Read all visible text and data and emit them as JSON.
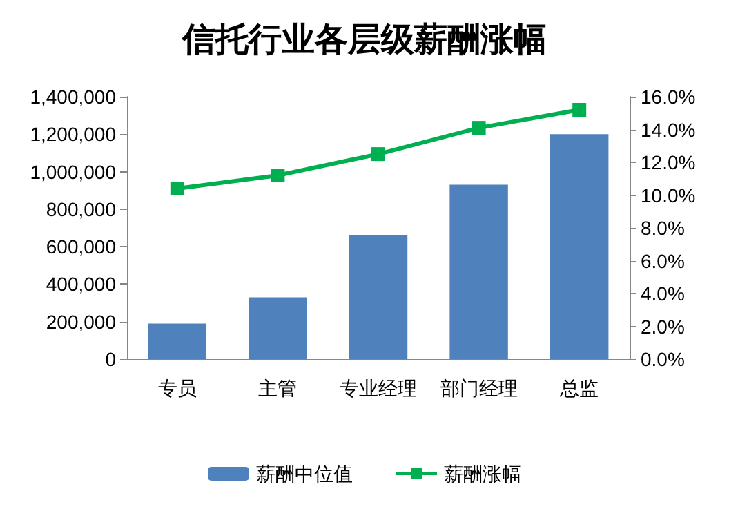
{
  "chart_data": {
    "type": "bar",
    "title": "信托行业各层级薪酬涨幅",
    "categories": [
      "专员",
      "主管",
      "专业经理",
      "部门经理",
      "总监"
    ],
    "series": [
      {
        "name": "薪酬中位值",
        "color": "#4f81bd",
        "values": [
          190000,
          330000,
          660000,
          930000,
          1200000
        ]
      },
      {
        "name": "薪酬涨幅",
        "type": "line",
        "axis": "y2",
        "color": "#00b050",
        "values": [
          10.4,
          11.2,
          12.5,
          14.1,
          15.2
        ]
      }
    ],
    "ylim": [
      0,
      1400000
    ],
    "yticks": [
      {
        "value": 0,
        "label": "0"
      },
      {
        "value": 200000,
        "label": "200,000"
      },
      {
        "value": 400000,
        "label": "400,000"
      },
      {
        "value": 600000,
        "label": "600,000"
      },
      {
        "value": 800000,
        "label": "800,000"
      },
      {
        "value": 1000000,
        "label": "1,000,000"
      },
      {
        "value": 1200000,
        "label": "1,200,000"
      },
      {
        "value": 1400000,
        "label": "1,400,000"
      }
    ],
    "y2lim": [
      0,
      16
    ],
    "y2ticks": [
      {
        "value": 0,
        "label": "0.0%"
      },
      {
        "value": 2,
        "label": "2.0%"
      },
      {
        "value": 4,
        "label": "4.0%"
      },
      {
        "value": 6,
        "label": "6.0%"
      },
      {
        "value": 8,
        "label": "8.0%"
      },
      {
        "value": 10,
        "label": "10.0%"
      },
      {
        "value": 12,
        "label": "12.0%"
      },
      {
        "value": 14,
        "label": "14.0%"
      },
      {
        "value": 16,
        "label": "16.0%"
      }
    ],
    "legend": "bottom",
    "marker": "square",
    "grid": false
  }
}
